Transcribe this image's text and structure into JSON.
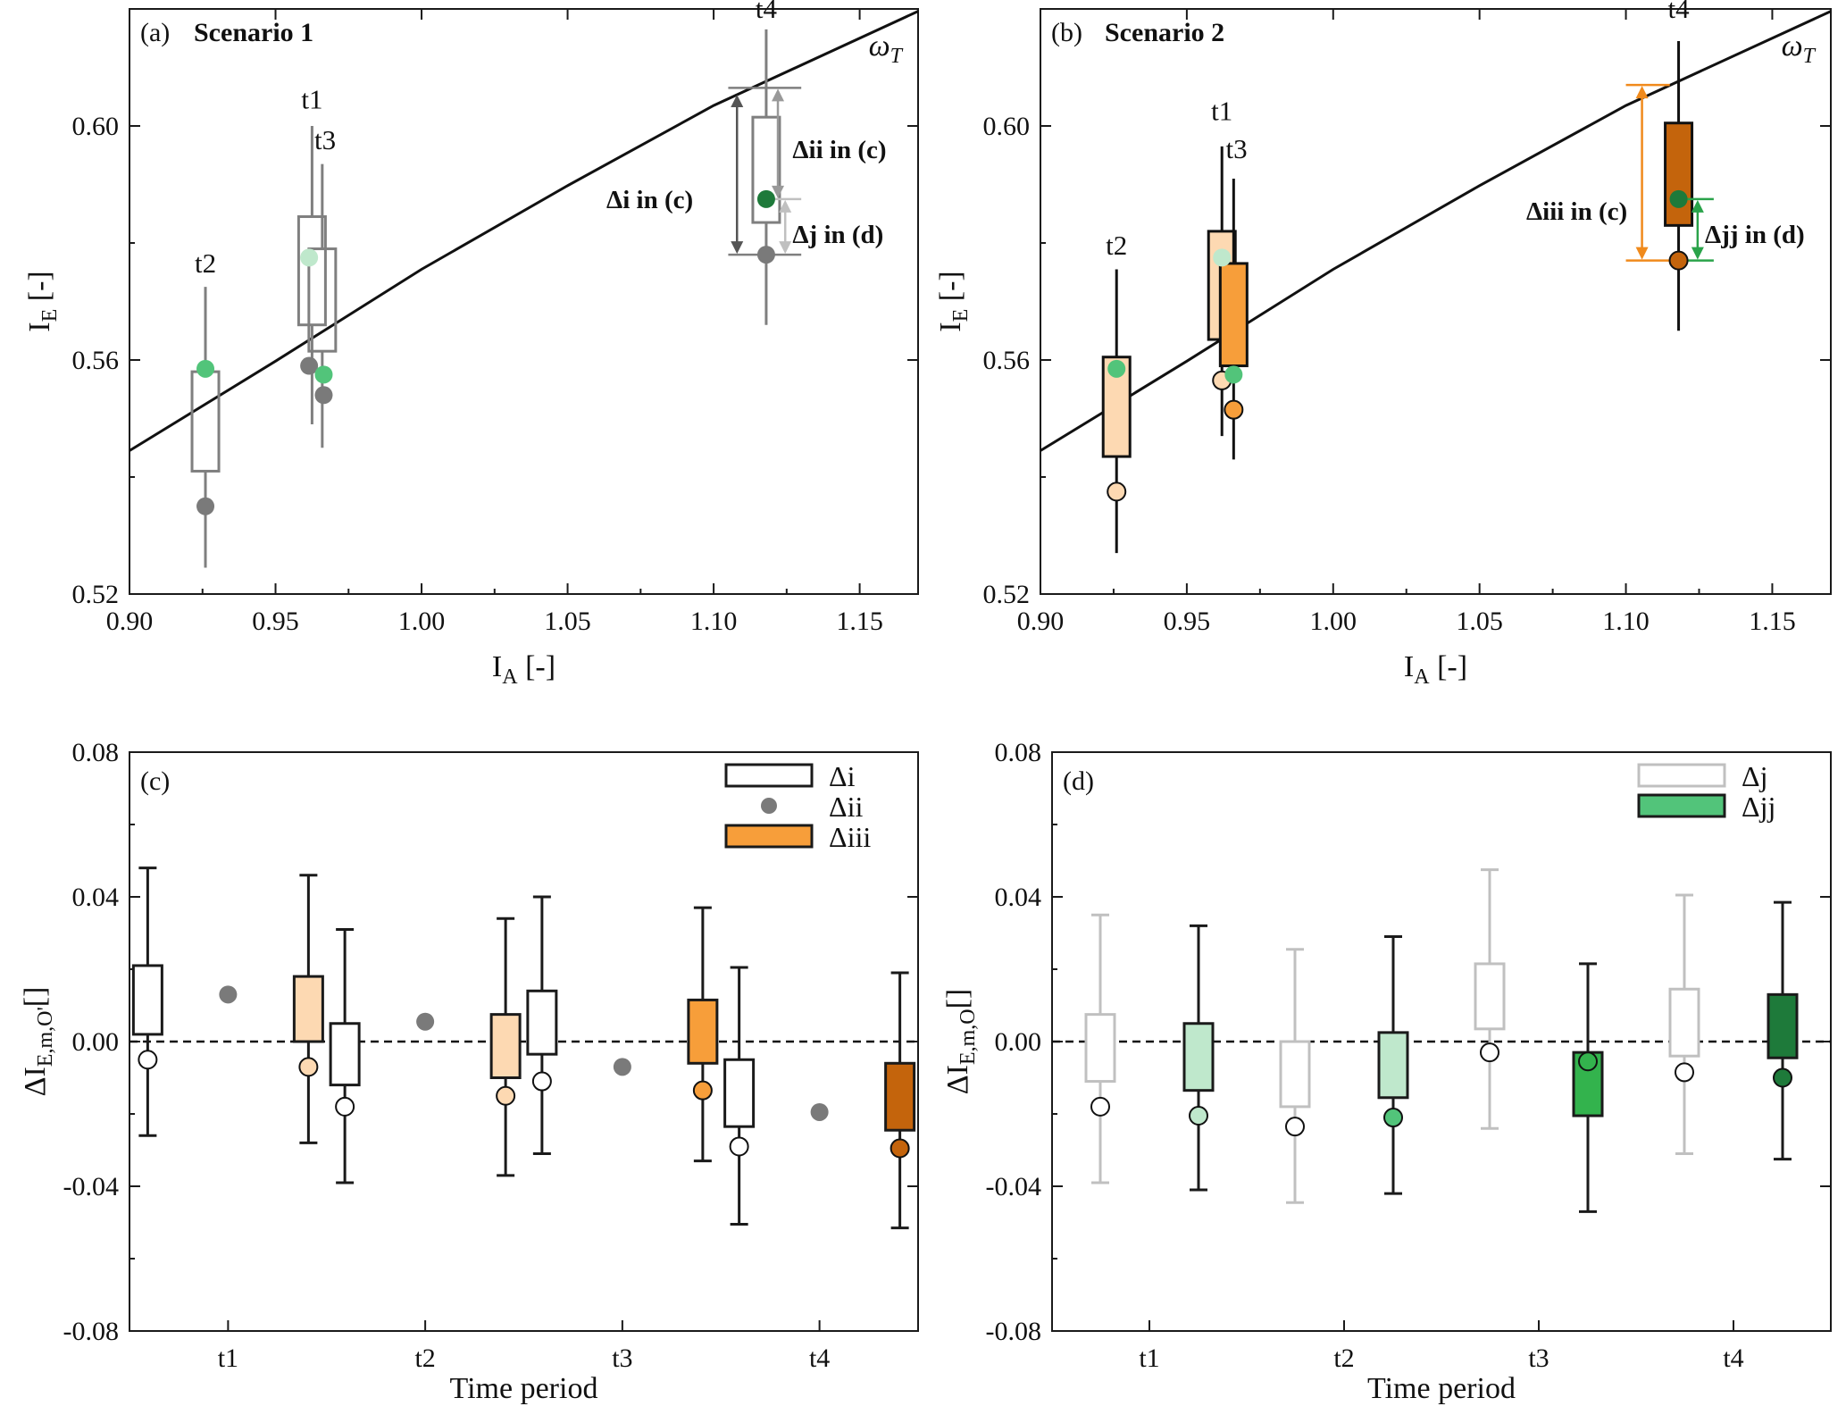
{
  "colors": {
    "axis": "#1a1a1a",
    "scenario1_box": "#7f7f7f",
    "light_gray": "#c0c0c0",
    "green_mid": "#52c47a",
    "green_light": "#bfe8cc",
    "green_med": "#33b34d",
    "green_dark": "#1e7a3a",
    "orange_light": "#fdd9b2",
    "orange_mid": "#f79e3a",
    "orange_dark": "#c4640c",
    "gray_marker": "#7a7a7a"
  },
  "chart_data": [
    {
      "id": "a",
      "type": "box",
      "label": "(a)",
      "title": "Scenario 1",
      "xlabel": "I",
      "xlabel_sub": "A",
      "xlabel_unit": " [-]",
      "ylabel": "I",
      "ylabel_sub": "E",
      "ylabel_unit": " [-]",
      "xlim": [
        0.9,
        1.17
      ],
      "ylim": [
        0.52,
        0.62
      ],
      "xticks": [
        "0.90",
        "0.95",
        "1.00",
        "1.05",
        "1.10",
        "1.15"
      ],
      "yticks": [
        "0.52",
        "0.56",
        "0.60"
      ],
      "line_label": "ωT",
      "line": [
        [
          0.9,
          0.5445
        ],
        [
          0.95,
          0.5598
        ],
        [
          1.0,
          0.5755
        ],
        [
          1.05,
          0.5898
        ],
        [
          1.1,
          0.6035
        ],
        [
          1.17,
          0.6196
        ]
      ],
      "boxes": [
        {
          "t": "t2",
          "x": 0.926,
          "q1": 0.541,
          "q3": 0.558,
          "wlo": 0.5245,
          "whi": 0.5725
        },
        {
          "t": "t1",
          "x": 0.9625,
          "q1": 0.566,
          "q3": 0.5845,
          "wlo": 0.549,
          "whi": 0.6
        },
        {
          "t": "t3",
          "x": 0.966,
          "q1": 0.5615,
          "q3": 0.579,
          "wlo": 0.545,
          "whi": 0.5935
        },
        {
          "t": "t4",
          "x": 1.118,
          "q1": 0.5835,
          "q3": 0.6015,
          "wlo": 0.566,
          "whi": 0.6165
        }
      ],
      "time_labels": [
        {
          "text": "t2",
          "x": 0.926,
          "y": 0.575
        },
        {
          "text": "t1",
          "x": 0.9625,
          "y": 0.603
        },
        {
          "text": "t3",
          "x": 0.967,
          "y": 0.596
        },
        {
          "text": "t4",
          "x": 1.118,
          "y": 0.6185
        }
      ],
      "points": [
        {
          "x": 0.926,
          "y": 0.5585,
          "c": "green_mid",
          "hollow": false
        },
        {
          "x": 0.926,
          "y": 0.535,
          "c": "gray_marker",
          "hollow": false
        },
        {
          "x": 0.9615,
          "y": 0.5775,
          "c": "green_light",
          "hollow": false
        },
        {
          "x": 0.9615,
          "y": 0.559,
          "c": "gray_marker",
          "hollow": false
        },
        {
          "x": 0.9665,
          "y": 0.5575,
          "c": "green_mid",
          "hollow": false
        },
        {
          "x": 0.9665,
          "y": 0.554,
          "c": "gray_marker",
          "hollow": false
        },
        {
          "x": 1.118,
          "y": 0.5875,
          "c": "green_dark",
          "hollow": false
        },
        {
          "x": 1.118,
          "y": 0.578,
          "c": "gray_marker",
          "hollow": false
        }
      ],
      "arrows": [
        {
          "label": "Δi in (c)",
          "x": 1.108,
          "y1": 0.6055,
          "y2": 0.578,
          "c": "#555555",
          "lx": 1.093,
          "ly": 0.5875,
          "anchor": "end"
        },
        {
          "label": "Δii in (c)",
          "x": 1.122,
          "y1": 0.6065,
          "y2": 0.5875,
          "c": "#999999",
          "lx": 1.127,
          "ly": 0.596,
          "anchor": "start"
        },
        {
          "label": "Δj in (d)",
          "x": 1.1245,
          "y1": 0.5875,
          "y2": 0.578,
          "c": "#c0c0c0",
          "lx": 1.127,
          "ly": 0.5815,
          "anchor": "start"
        }
      ],
      "guides": [
        {
          "x1": 1.105,
          "x2": 1.13,
          "y": 0.6065,
          "c": "#7f7f7f"
        },
        {
          "x1": 1.105,
          "x2": 1.13,
          "y": 0.578,
          "c": "#7f7f7f"
        },
        {
          "x1": 1.118,
          "x2": 1.13,
          "y": 0.5875,
          "c": "#c0c0c0"
        }
      ]
    },
    {
      "id": "b",
      "type": "box",
      "label": "(b)",
      "title": "Scenario 2",
      "xlabel": "I",
      "xlabel_sub": "A",
      "xlabel_unit": " [-]",
      "ylabel": "I",
      "ylabel_sub": "E",
      "ylabel_unit": " [-]",
      "xlim": [
        0.9,
        1.17
      ],
      "ylim": [
        0.52,
        0.62
      ],
      "xticks": [
        "0.90",
        "0.95",
        "1.00",
        "1.05",
        "1.10",
        "1.15"
      ],
      "yticks": [
        "0.52",
        "0.56",
        "0.60"
      ],
      "line_label": "ωT",
      "line": [
        [
          0.9,
          0.5445
        ],
        [
          0.95,
          0.5598
        ],
        [
          1.0,
          0.5755
        ],
        [
          1.05,
          0.5898
        ],
        [
          1.1,
          0.6035
        ],
        [
          1.17,
          0.6196
        ]
      ],
      "boxes": [
        {
          "t": "t2",
          "x": 0.926,
          "q1": 0.5435,
          "q3": 0.5605,
          "wlo": 0.527,
          "whi": 0.5755,
          "fill": "orange_light"
        },
        {
          "t": "t1",
          "x": 0.962,
          "q1": 0.5635,
          "q3": 0.582,
          "wlo": 0.547,
          "whi": 0.5965,
          "fill": "orange_light"
        },
        {
          "t": "t3",
          "x": 0.966,
          "q1": 0.559,
          "q3": 0.5765,
          "wlo": 0.543,
          "whi": 0.591,
          "fill": "orange_mid"
        },
        {
          "t": "t4",
          "x": 1.118,
          "q1": 0.583,
          "q3": 0.6005,
          "wlo": 0.565,
          "whi": 0.6145,
          "fill": "orange_dark"
        }
      ],
      "time_labels": [
        {
          "text": "t2",
          "x": 0.926,
          "y": 0.578
        },
        {
          "text": "t1",
          "x": 0.962,
          "y": 0.601
        },
        {
          "text": "t3",
          "x": 0.967,
          "y": 0.5945
        },
        {
          "text": "t4",
          "x": 1.118,
          "y": 0.6185
        }
      ],
      "points": [
        {
          "x": 0.926,
          "y": 0.5585,
          "c": "green_mid",
          "hollow": false
        },
        {
          "x": 0.926,
          "y": 0.5375,
          "c": "orange_light",
          "hollow": true
        },
        {
          "x": 0.962,
          "y": 0.5775,
          "c": "green_light",
          "hollow": false
        },
        {
          "x": 0.962,
          "y": 0.5565,
          "c": "orange_light",
          "hollow": true
        },
        {
          "x": 0.966,
          "y": 0.5575,
          "c": "green_mid",
          "hollow": false
        },
        {
          "x": 0.966,
          "y": 0.5515,
          "c": "orange_mid",
          "hollow": true
        },
        {
          "x": 1.118,
          "y": 0.5875,
          "c": "green_dark",
          "hollow": false
        },
        {
          "x": 1.118,
          "y": 0.577,
          "c": "orange_dark",
          "hollow": true
        }
      ],
      "arrows": [
        {
          "label": "Δiii in (c)",
          "x": 1.1055,
          "y1": 0.607,
          "y2": 0.577,
          "c": "#f08a1c",
          "lx": 1.1005,
          "ly": 0.5855,
          "anchor": "end"
        },
        {
          "label": "Δjj in (d)",
          "x": 1.1245,
          "y1": 0.5875,
          "y2": 0.577,
          "c": "#2aa34a",
          "lx": 1.127,
          "ly": 0.5815,
          "anchor": "start"
        }
      ],
      "guides": [
        {
          "x1": 1.1,
          "x2": 1.115,
          "y": 0.607,
          "c": "#f08a1c"
        },
        {
          "x1": 1.1,
          "x2": 1.115,
          "y": 0.577,
          "c": "#f08a1c"
        },
        {
          "x1": 1.118,
          "x2": 1.13,
          "y": 0.5875,
          "c": "#2aa34a"
        },
        {
          "x1": 1.118,
          "x2": 1.13,
          "y": 0.577,
          "c": "#2aa34a"
        }
      ]
    },
    {
      "id": "c",
      "type": "box",
      "label": "(c)",
      "xlabel": "Time period",
      "ylabel": "ΔI",
      "ylabel_sub": "E,m,O'",
      "ylabel_unit": "[]",
      "categories": [
        "t1",
        "t2",
        "t3",
        "t4"
      ],
      "ylim": [
        -0.08,
        0.08
      ],
      "yticks": [
        "-0.08",
        "-0.04",
        "0.00",
        "0.04",
        "0.08"
      ],
      "legend": [
        {
          "label": "Δi",
          "kind": "box",
          "fill": "#ffffff",
          "stroke": "#1a1a1a"
        },
        {
          "label": "Δii",
          "kind": "dot",
          "fill": "#7a7a7a"
        },
        {
          "label": "Δiii",
          "kind": "box",
          "fill": "#f79e3a",
          "stroke": "#1a1a1a"
        }
      ],
      "series": [
        {
          "name": "Δi",
          "category": "t1",
          "q1": 0.002,
          "q3": 0.021,
          "wlo": -0.026,
          "whi": 0.048,
          "mean": -0.005,
          "fill": "#ffffff",
          "stroke": "#1a1a1a",
          "dot": "#ffffff"
        },
        {
          "name": "Δii",
          "category": "t1",
          "point": 0.013,
          "c": "#7a7a7a"
        },
        {
          "name": "Δiii",
          "category": "t1",
          "q1": 0.0,
          "q3": 0.018,
          "wlo": -0.028,
          "whi": 0.046,
          "mean": -0.007,
          "fill": "#fdd9b2",
          "stroke": "#1a1a1a",
          "dot": "#fdd9b2"
        },
        {
          "name": "Δi",
          "category": "t2",
          "q1": -0.012,
          "q3": 0.005,
          "wlo": -0.039,
          "whi": 0.031,
          "mean": -0.018,
          "fill": "#ffffff",
          "stroke": "#1a1a1a",
          "dot": "#ffffff"
        },
        {
          "name": "Δii",
          "category": "t2",
          "point": 0.0055,
          "c": "#7a7a7a"
        },
        {
          "name": "Δiii",
          "category": "t2",
          "q1": -0.01,
          "q3": 0.0075,
          "wlo": -0.037,
          "whi": 0.034,
          "mean": -0.015,
          "fill": "#fdd9b2",
          "stroke": "#1a1a1a",
          "dot": "#fdd9b2"
        },
        {
          "name": "Δi",
          "category": "t3",
          "q1": -0.0035,
          "q3": 0.014,
          "wlo": -0.031,
          "whi": 0.04,
          "mean": -0.011,
          "fill": "#ffffff",
          "stroke": "#1a1a1a",
          "dot": "#ffffff"
        },
        {
          "name": "Δii",
          "category": "t3",
          "point": -0.007,
          "c": "#7a7a7a"
        },
        {
          "name": "Δiii",
          "category": "t3",
          "q1": -0.006,
          "q3": 0.0115,
          "wlo": -0.033,
          "whi": 0.037,
          "mean": -0.0135,
          "fill": "#f79e3a",
          "stroke": "#1a1a1a",
          "dot": "#f79e3a"
        },
        {
          "name": "Δi",
          "category": "t4",
          "q1": -0.0235,
          "q3": -0.005,
          "wlo": -0.0505,
          "whi": 0.0205,
          "mean": -0.029,
          "fill": "#ffffff",
          "stroke": "#1a1a1a",
          "dot": "#ffffff"
        },
        {
          "name": "Δii",
          "category": "t4",
          "point": -0.0195,
          "c": "#7a7a7a"
        },
        {
          "name": "Δiii",
          "category": "t4",
          "q1": -0.0245,
          "q3": -0.006,
          "wlo": -0.0515,
          "whi": 0.019,
          "mean": -0.0295,
          "fill": "#c4640c",
          "stroke": "#1a1a1a",
          "dot": "#c4640c"
        }
      ]
    },
    {
      "id": "d",
      "type": "box",
      "label": "(d)",
      "xlabel": "Time period",
      "ylabel": "ΔI",
      "ylabel_sub": "E,m,O",
      "ylabel_unit": "[]",
      "categories": [
        "t1",
        "t2",
        "t3",
        "t4"
      ],
      "ylim": [
        -0.08,
        0.08
      ],
      "yticks": [
        "-0.08",
        "-0.04",
        "0.00",
        "0.04",
        "0.08"
      ],
      "legend": [
        {
          "label": "Δj",
          "kind": "box",
          "fill": "#ffffff",
          "stroke": "#c0c0c0"
        },
        {
          "label": "Δjj",
          "kind": "box",
          "fill": "#52c47a",
          "stroke": "#1a1a1a"
        }
      ],
      "series": [
        {
          "name": "Δj",
          "category": "t1",
          "q1": -0.011,
          "q3": 0.0075,
          "wlo": -0.039,
          "whi": 0.035,
          "mean": -0.018,
          "fill": "#ffffff",
          "stroke": "#c0c0c0",
          "dot": "#ffffff"
        },
        {
          "name": "Δjj",
          "category": "t1",
          "q1": -0.0135,
          "q3": 0.005,
          "wlo": -0.041,
          "whi": 0.032,
          "mean": -0.0205,
          "fill": "#bfe8cc",
          "stroke": "#1a1a1a",
          "dot": "#bfe8cc"
        },
        {
          "name": "Δj",
          "category": "t2",
          "q1": -0.018,
          "q3": 0.0,
          "wlo": -0.0445,
          "whi": 0.0255,
          "mean": -0.0235,
          "fill": "#ffffff",
          "stroke": "#c0c0c0",
          "dot": "#ffffff"
        },
        {
          "name": "Δjj",
          "category": "t2",
          "q1": -0.0155,
          "q3": 0.0025,
          "wlo": -0.042,
          "whi": 0.029,
          "mean": -0.021,
          "fill": "#bfe8cc",
          "stroke": "#1a1a1a",
          "dot": "#52c47a"
        },
        {
          "name": "Δj",
          "category": "t3",
          "q1": 0.0035,
          "q3": 0.0215,
          "wlo": -0.024,
          "whi": 0.0475,
          "mean": -0.003,
          "fill": "#ffffff",
          "stroke": "#c0c0c0",
          "dot": "#ffffff"
        },
        {
          "name": "Δjj",
          "category": "t3",
          "q1": -0.0205,
          "q3": -0.003,
          "wlo": -0.047,
          "whi": 0.0215,
          "mean": -0.0055,
          "fill": "#33b34d",
          "stroke": "#1a1a1a",
          "dot": "#33b34d"
        },
        {
          "name": "Δj",
          "category": "t4",
          "q1": -0.004,
          "q3": 0.0145,
          "wlo": -0.031,
          "whi": 0.0405,
          "mean": -0.0085,
          "fill": "#ffffff",
          "stroke": "#c0c0c0",
          "dot": "#ffffff"
        },
        {
          "name": "Δjj",
          "category": "t4",
          "q1": -0.0045,
          "q3": 0.013,
          "wlo": -0.0325,
          "whi": 0.0385,
          "mean": -0.01,
          "fill": "#1e7a3a",
          "stroke": "#1a1a1a",
          "dot": "#1e7a3a"
        }
      ]
    }
  ]
}
